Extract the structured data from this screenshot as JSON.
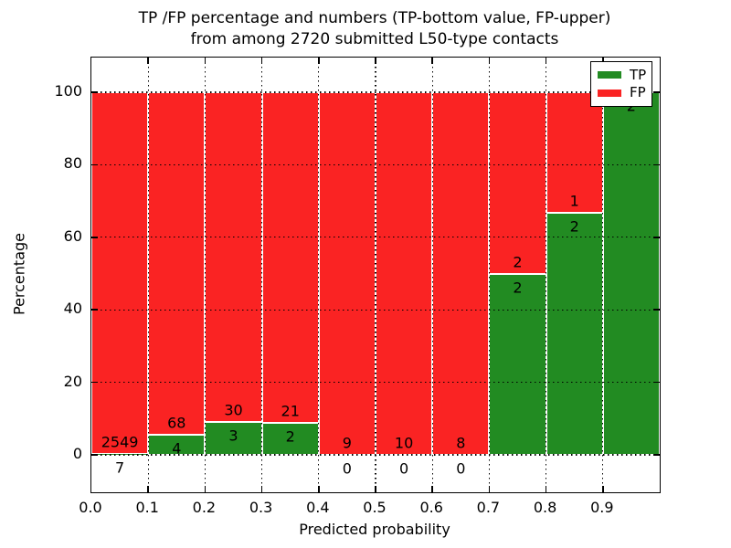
{
  "figure": {
    "title_line1": "TP /FP percentage and numbers (TP-bottom value, FP-upper)",
    "title_line2": "from among 2720 submitted L50-type contacts",
    "background": "#ffffff"
  },
  "chart_data": {
    "type": "bar",
    "stacked": true,
    "unit": "percent",
    "title": "TP /FP percentage and numbers (TP-bottom value, FP-upper) from among 2720 submitted L50-type contacts",
    "xlabel": "Predicted probability",
    "ylabel": "Percentage",
    "total_contacts": 2720,
    "bins": [
      "0.0-0.1",
      "0.1-0.2",
      "0.2-0.3",
      "0.3-0.4",
      "0.4-0.5",
      "0.5-0.6",
      "0.6-0.7",
      "0.7-0.8",
      "0.8-0.9",
      "0.9-1.0"
    ],
    "x_tick_labels": [
      "0.0",
      "0.1",
      "0.2",
      "0.3",
      "0.4",
      "0.5",
      "0.6",
      "0.7",
      "0.8",
      "0.9"
    ],
    "y_ticks": [
      0,
      20,
      40,
      60,
      80,
      100
    ],
    "y_tick_labels": [
      "0",
      "20",
      "40",
      "60",
      "80",
      "100"
    ],
    "ylim": [
      0,
      100
    ],
    "grid": "dotted-black",
    "legend_position": "upper right",
    "series": [
      {
        "name": "TP",
        "color": "#228b22",
        "counts": [
          7,
          4,
          3,
          2,
          0,
          0,
          0,
          2,
          2,
          2
        ]
      },
      {
        "name": "FP",
        "color": "#fa2323",
        "counts": [
          2549,
          68,
          30,
          21,
          9,
          10,
          8,
          2,
          1,
          0
        ]
      }
    ],
    "tp_percentages": [
      0.27,
      5.56,
      9.09,
      8.7,
      0.0,
      0.0,
      0.0,
      50.0,
      66.67,
      100.0
    ]
  },
  "legend": {
    "entries": [
      {
        "label": "TP",
        "color": "#228b22"
      },
      {
        "label": "FP",
        "color": "#fa2323"
      }
    ]
  }
}
